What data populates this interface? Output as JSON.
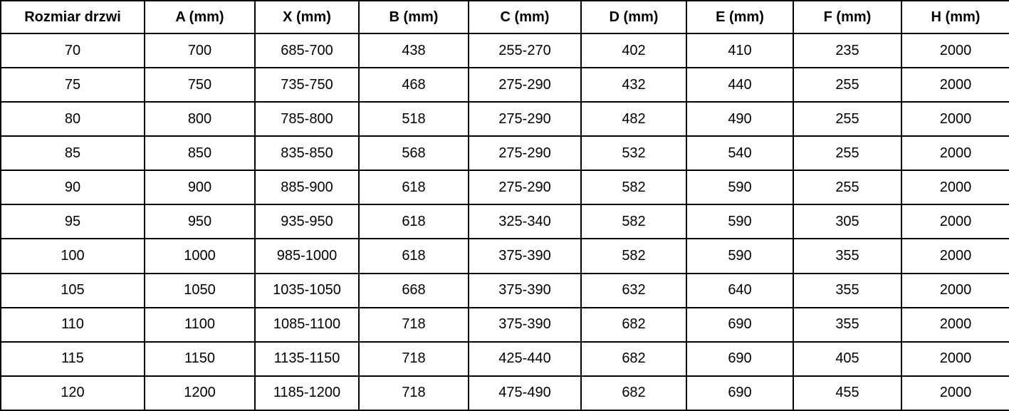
{
  "table": {
    "name": "door-dimensions-table",
    "columns": [
      "Rozmiar drzwi",
      "A (mm)",
      "X (mm)",
      "B (mm)",
      "C (mm)",
      "D (mm)",
      "E (mm)",
      "F (mm)",
      "H (mm)"
    ],
    "rows": [
      [
        "70",
        "700",
        "685-700",
        "438",
        "255-270",
        "402",
        "410",
        "235",
        "2000"
      ],
      [
        "75",
        "750",
        "735-750",
        "468",
        "275-290",
        "432",
        "440",
        "255",
        "2000"
      ],
      [
        "80",
        "800",
        "785-800",
        "518",
        "275-290",
        "482",
        "490",
        "255",
        "2000"
      ],
      [
        "85",
        "850",
        "835-850",
        "568",
        "275-290",
        "532",
        "540",
        "255",
        "2000"
      ],
      [
        "90",
        "900",
        "885-900",
        "618",
        "275-290",
        "582",
        "590",
        "255",
        "2000"
      ],
      [
        "95",
        "950",
        "935-950",
        "618",
        "325-340",
        "582",
        "590",
        "305",
        "2000"
      ],
      [
        "100",
        "1000",
        "985-1000",
        "618",
        "375-390",
        "582",
        "590",
        "355",
        "2000"
      ],
      [
        "105",
        "1050",
        "1035-1050",
        "668",
        "375-390",
        "632",
        "640",
        "355",
        "2000"
      ],
      [
        "110",
        "1100",
        "1085-1100",
        "718",
        "375-390",
        "682",
        "690",
        "355",
        "2000"
      ],
      [
        "115",
        "1150",
        "1135-1150",
        "718",
        "425-440",
        "682",
        "690",
        "405",
        "2000"
      ],
      [
        "120",
        "1200",
        "1185-1200",
        "718",
        "475-490",
        "682",
        "690",
        "455",
        "2000"
      ]
    ]
  },
  "colors": {
    "border": "#000000",
    "text": "#000000",
    "background": "#ffffff"
  }
}
